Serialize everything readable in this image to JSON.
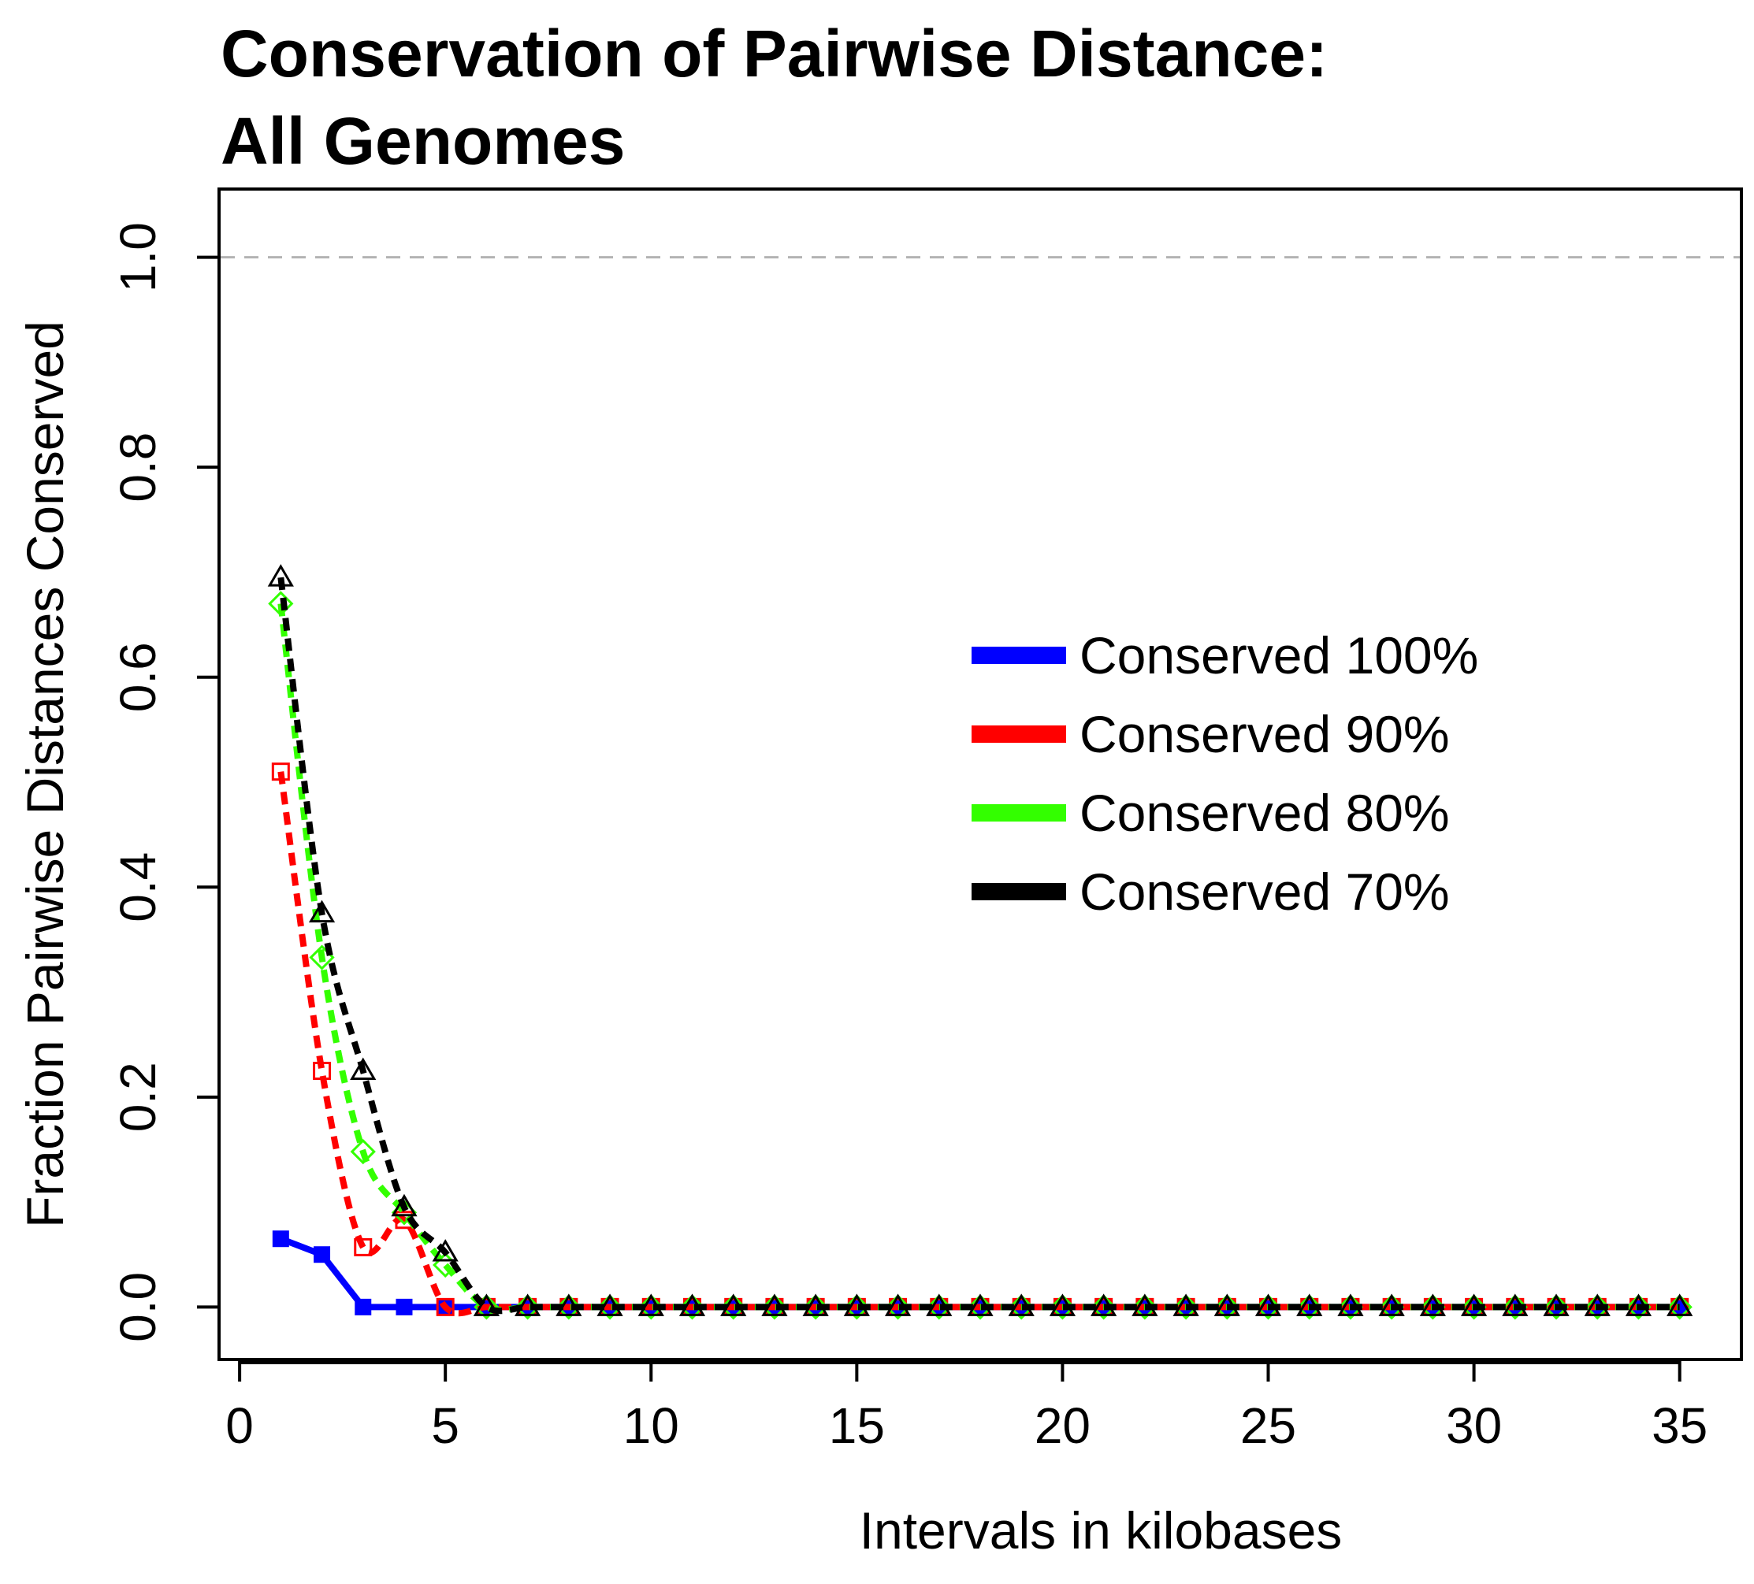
{
  "chart_data": {
    "type": "line",
    "title": "Conservation of Pairwise Distance:",
    "subtitle": "All Genomes",
    "xlabel": "Intervals in kilobases",
    "ylabel": "Fraction Pairwise Distances Conserved",
    "xlim": [
      -0.5,
      36.5
    ],
    "ylim": [
      -0.05,
      1.065
    ],
    "x_ticks": [
      0,
      5,
      10,
      15,
      20,
      25,
      30,
      35
    ],
    "x_tick_labels": [
      "0",
      "5",
      "10",
      "15",
      "20",
      "25",
      "30",
      "35"
    ],
    "y_ticks": [
      0,
      0.2,
      0.4,
      0.6,
      0.8,
      1.0
    ],
    "y_tick_labels": [
      "0.0",
      "0.2",
      "0.4",
      "0.6",
      "0.8",
      "1.0"
    ],
    "reference_line": {
      "y": 1.0,
      "color": "#b3b3b3",
      "style": "dashed"
    },
    "legend_position": "center-right",
    "x": [
      1,
      2,
      3,
      4,
      5,
      6,
      7,
      8,
      9,
      10,
      11,
      12,
      13,
      14,
      15,
      16,
      17,
      18,
      19,
      20,
      21,
      22,
      23,
      24,
      25,
      26,
      27,
      28,
      29,
      30,
      31,
      32,
      33,
      34,
      35
    ],
    "series": [
      {
        "name": "Conserved 100%",
        "color": "#0000ff",
        "line_style": "solid",
        "marker": "filled-square",
        "values": [
          0.065,
          0.05,
          0,
          0,
          0,
          0,
          0,
          0,
          0,
          0,
          0,
          0,
          0,
          0,
          0,
          0,
          0,
          0,
          0,
          0,
          0,
          0,
          0,
          0,
          0,
          0,
          0,
          0,
          0,
          0,
          0,
          0,
          0,
          0,
          0
        ]
      },
      {
        "name": "Conserved 90%",
        "color": "#ff0000",
        "line_style": "dashed",
        "marker": "open-square",
        "values": [
          0.51,
          0.225,
          0.057,
          0.083,
          0,
          0,
          0,
          0,
          0,
          0,
          0,
          0,
          0,
          0,
          0,
          0,
          0,
          0,
          0,
          0,
          0,
          0,
          0,
          0,
          0,
          0,
          0,
          0,
          0,
          0,
          0,
          0,
          0,
          0,
          0
        ]
      },
      {
        "name": "Conserved 80%",
        "color": "#33ff00",
        "line_style": "dashed",
        "marker": "open-diamond",
        "values": [
          0.67,
          0.333,
          0.148,
          0.09,
          0.04,
          0,
          0,
          0,
          0,
          0,
          0,
          0,
          0,
          0,
          0,
          0,
          0,
          0,
          0,
          0,
          0,
          0,
          0,
          0,
          0,
          0,
          0,
          0,
          0,
          0,
          0,
          0,
          0,
          0,
          0
        ]
      },
      {
        "name": "Conserved 70%",
        "color": "#000000",
        "line_style": "dashed",
        "marker": "open-triangle",
        "values": [
          0.695,
          0.375,
          0.225,
          0.095,
          0.052,
          0,
          0,
          0,
          0,
          0,
          0,
          0,
          0,
          0,
          0,
          0,
          0,
          0,
          0,
          0,
          0,
          0,
          0,
          0,
          0,
          0,
          0,
          0,
          0,
          0,
          0,
          0,
          0,
          0,
          0
        ]
      }
    ]
  }
}
